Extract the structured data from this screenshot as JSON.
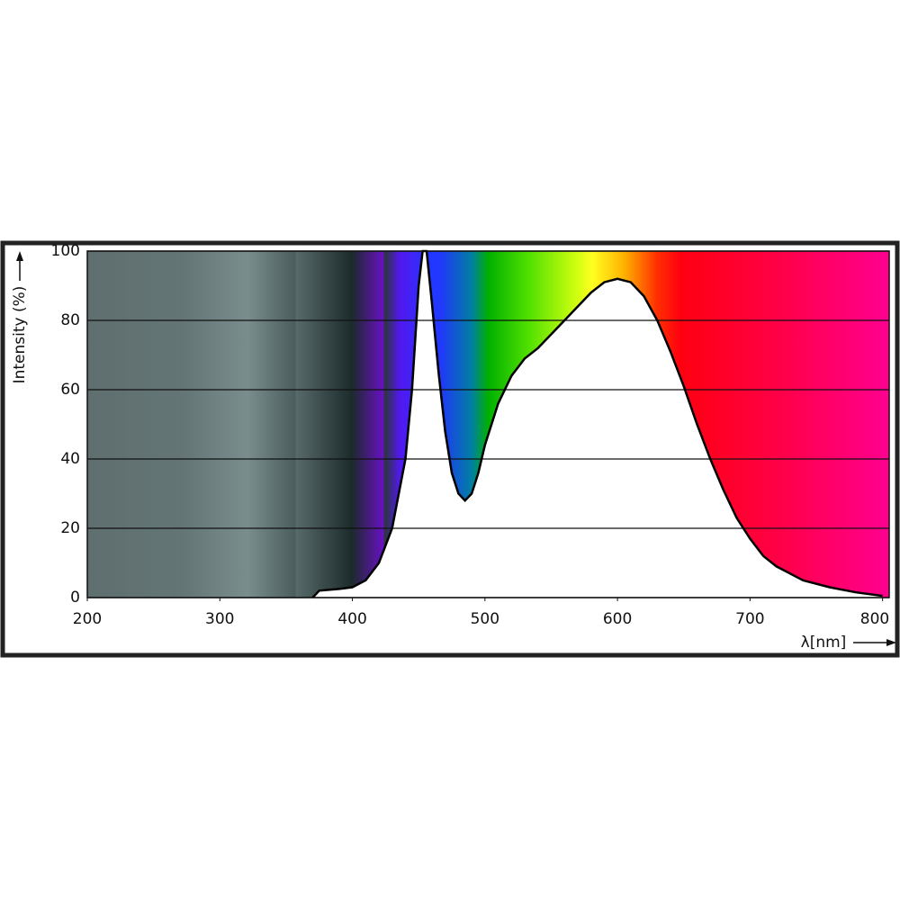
{
  "chart_data": {
    "type": "area",
    "y_label": "Intensity (%)",
    "x_label": "λ[nm]",
    "x": [
      370,
      375,
      390,
      400,
      410,
      420,
      430,
      440,
      445,
      450,
      453,
      456,
      460,
      465,
      470,
      475,
      480,
      485,
      490,
      495,
      500,
      510,
      520,
      530,
      540,
      550,
      560,
      570,
      580,
      590,
      600,
      610,
      620,
      630,
      640,
      650,
      660,
      670,
      680,
      690,
      700,
      710,
      720,
      740,
      760,
      780,
      800
    ],
    "values": [
      0,
      2,
      2.5,
      3,
      5,
      10,
      20,
      40,
      60,
      90,
      100,
      100,
      85,
      65,
      48,
      36,
      30,
      28,
      30,
      36,
      44,
      56,
      64,
      69,
      72,
      76,
      80,
      84,
      88,
      91,
      92,
      91,
      87,
      80,
      71,
      61,
      50,
      40,
      31,
      23,
      17,
      12,
      9,
      5,
      3,
      1.5,
      0.5
    ],
    "color": "#000000",
    "fill": "#ffffff",
    "xlim": [
      200,
      805
    ],
    "ylim": [
      0,
      100
    ],
    "xticks": [
      200,
      300,
      400,
      500,
      600,
      700,
      800
    ],
    "yticks": [
      0,
      20,
      40,
      60,
      80,
      100
    ],
    "grid": true
  }
}
